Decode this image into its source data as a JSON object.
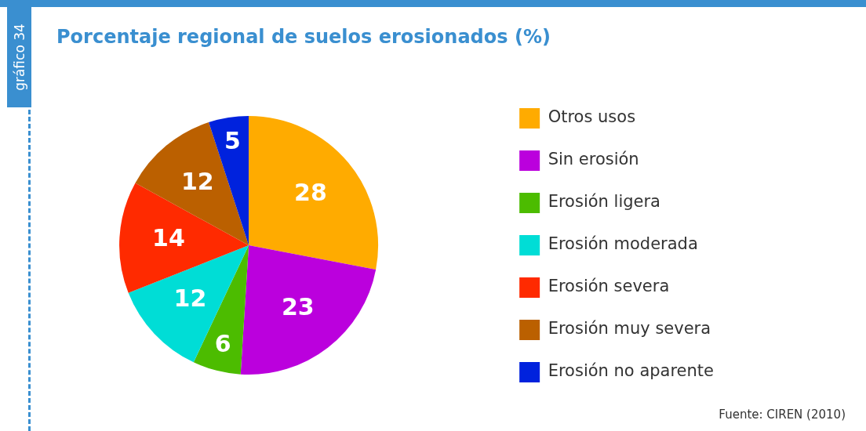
{
  "chart_data": {
    "type": "pie",
    "title": "Porcentaje regional de suelos erosionados (%)",
    "categories": [
      "Otros usos",
      "Sin erosión",
      "Erosión ligera",
      "Erosión moderada",
      "Erosión severa",
      "Erosión muy severa",
      "Erosión no aparente"
    ],
    "values": [
      28,
      23,
      6,
      12,
      14,
      12,
      5
    ],
    "colors": [
      "#ffab00",
      "#bb00dd",
      "#4cbc00",
      "#00ddd6",
      "#ff2a00",
      "#bb6000",
      "#0022dd"
    ],
    "data_labels": true,
    "legend": "right",
    "annotations": [
      "gráfico 34",
      "Fuente: CIREN (2010)"
    ]
  }
}
